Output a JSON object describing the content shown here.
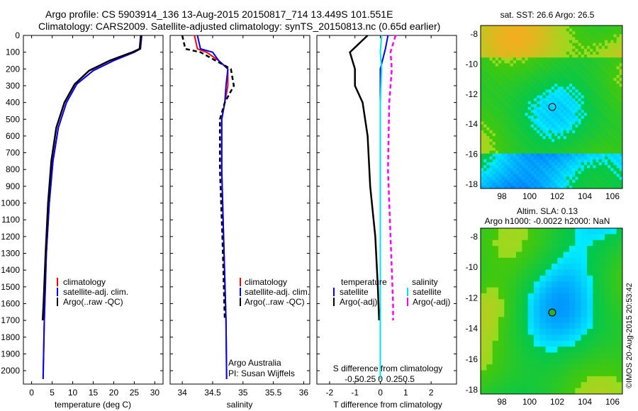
{
  "header": {
    "line1": "Argo profile: CS 5903914_136 13-Aug-2015 20150817_714 13.449S 101.551E",
    "line2": "Climatology: CARS2009. Satellite-adjusted climatology: synTS_20150813.nc (0.65d earlier)"
  },
  "colors": {
    "climatology": "#ff0000",
    "satellite": "#0000ff",
    "argo": "#000000",
    "sat_salinity": "#00e5ee",
    "argo_salinity": "#ff00ff"
  },
  "depth_ticks": [
    "0",
    "100",
    "200",
    "300",
    "400",
    "500",
    "600",
    "700",
    "800",
    "900",
    "1000",
    "1100",
    "1200",
    "1300",
    "1400",
    "1500",
    "1600",
    "1700",
    "1800",
    "1900",
    "2000"
  ],
  "panels": {
    "temperature": {
      "xlabel": "temperature (deg C)",
      "xticks": [
        "0",
        "5",
        "10",
        "15",
        "20",
        "25",
        "30"
      ],
      "legend": [
        "climatology",
        "satellite-adj. clim.",
        "Argo(..raw -QC)"
      ]
    },
    "salinity": {
      "xlabel": "salinity",
      "xticks": [
        "34",
        "34.5",
        "35",
        "35.5",
        "36"
      ],
      "legend": [
        "climatology",
        "satellite-adj. clim.",
        "Argo(..raw -QC)"
      ],
      "credit1": "Argo Australia",
      "credit2": "PI: Susan Wijffels"
    },
    "difference": {
      "xlabel": "T difference from climatology",
      "top_label": "S difference from climatology",
      "xticks": [
        "-2",
        "-1",
        "0",
        "1",
        "2"
      ],
      "sticks": [
        "-0.5",
        "-0.25",
        "0",
        "0.25",
        "0.5"
      ],
      "legend_t_title": "temperature",
      "legend_s_title": "salinity",
      "legend_t": [
        "satellite",
        "Argo(-adj)"
      ],
      "legend_s": [
        "satellite",
        "Argo(-adj)"
      ]
    },
    "sst_map": {
      "title": "sat. SST: 26.6 Argo: 26.5",
      "yticks": [
        "-8",
        "-10",
        "-12",
        "-14",
        "-16",
        "-18"
      ],
      "xticks": [
        "98",
        "100",
        "102",
        "104",
        "106"
      ]
    },
    "sla_map": {
      "title1": "Altim. SLA: 0.13",
      "title2": "Argo h1000: -0.0022 h2000: NaN",
      "yticks": [
        "-8",
        "-10",
        "-12",
        "-14",
        "-16",
        "-18"
      ],
      "xticks": [
        "98",
        "100",
        "102",
        "104",
        "106"
      ]
    }
  },
  "footer": {
    "credit": "©IMOS 20-Aug-2015 20:53:42"
  },
  "chart_data": [
    {
      "type": "line",
      "title": "",
      "xlabel": "temperature (deg C)",
      "ylabel": "",
      "xlim": [
        -2,
        32
      ],
      "ylim": [
        2080,
        0
      ],
      "series": [
        {
          "name": "climatology",
          "x": [
            26.8,
            26.5,
            25,
            20,
            15,
            11,
            8.5,
            6.5,
            5.2,
            4.3,
            3.6,
            3.1,
            2.8
          ],
          "y": [
            0,
            80,
            100,
            150,
            210,
            290,
            400,
            550,
            750,
            1000,
            1300,
            1700,
            2050
          ]
        },
        {
          "name": "satellite-adj. clim.",
          "x": [
            26.8,
            26.5,
            25,
            20,
            15,
            11,
            8.5,
            6.5,
            5.2,
            4.3,
            3.6,
            3.1,
            2.8
          ],
          "y": [
            0,
            80,
            100,
            150,
            210,
            290,
            400,
            550,
            750,
            1000,
            1300,
            1700,
            2050
          ]
        },
        {
          "name": "Argo(..raw -QC)",
          "x": [
            26.6,
            26.3,
            24.5,
            19,
            14,
            10.5,
            8,
            6,
            4.8,
            4,
            3.4,
            2.9,
            2.7
          ],
          "y": [
            0,
            80,
            100,
            150,
            210,
            290,
            400,
            550,
            750,
            1000,
            1300,
            1600,
            1700
          ]
        }
      ]
    },
    {
      "type": "line",
      "title": "",
      "xlabel": "salinity",
      "ylabel": "",
      "xlim": [
        33.8,
        36.1
      ],
      "ylim": [
        2080,
        0
      ],
      "series": [
        {
          "name": "climatology",
          "x": [
            34.2,
            34.25,
            34.4,
            34.6,
            34.75,
            34.75,
            34.7,
            34.65,
            34.65,
            34.68,
            34.72,
            34.73
          ],
          "y": [
            0,
            80,
            100,
            150,
            200,
            300,
            400,
            500,
            800,
            1200,
            1700,
            2050
          ]
        },
        {
          "name": "satellite-adj. clim.",
          "x": [
            34.25,
            34.3,
            34.5,
            34.6,
            34.75,
            34.72,
            34.7,
            34.65,
            34.65,
            34.68,
            34.72,
            34.73
          ],
          "y": [
            0,
            80,
            100,
            150,
            200,
            300,
            400,
            500,
            800,
            1200,
            1700,
            2050
          ]
        },
        {
          "name": "Argo(..raw -QC)",
          "x": [
            34.0,
            34.05,
            34.3,
            34.55,
            34.8,
            34.85,
            34.7,
            34.62,
            34.62,
            34.66,
            34.7
          ],
          "y": [
            0,
            80,
            100,
            150,
            200,
            300,
            400,
            500,
            800,
            1200,
            1700
          ]
        }
      ]
    },
    {
      "type": "line",
      "title": "",
      "xlabel": "T difference from climatology",
      "ylabel": "",
      "xlim": [
        -2.5,
        3
      ],
      "ylim": [
        2080,
        0
      ],
      "series": [
        {
          "name": "temperature satellite",
          "x": [
            0.3,
            0.2,
            0,
            0,
            0,
            0,
            0,
            0,
            0,
            0
          ],
          "y": [
            0,
            80,
            200,
            400,
            600,
            900,
            1200,
            1500,
            1800,
            2050
          ]
        },
        {
          "name": "temperature Argo(-adj)",
          "x": [
            -0.5,
            -1.2,
            -1,
            -1,
            -0.7,
            -0.5,
            -0.4,
            -0.2,
            -0.1,
            -0.05
          ],
          "y": [
            0,
            100,
            200,
            300,
            400,
            600,
            900,
            1200,
            1500,
            1700
          ]
        },
        {
          "name": "salinity satellite",
          "x": [
            0.05,
            0,
            0.05,
            0,
            0,
            0,
            0,
            0
          ],
          "y": [
            0,
            100,
            200,
            400,
            800,
            1200,
            1600,
            2050
          ]
        },
        {
          "name": "salinity Argo(-adj)",
          "x": [
            0.6,
            0.4,
            0.45,
            0.35,
            0.3,
            0.4,
            0.5,
            0.5
          ],
          "y": [
            0,
            100,
            200,
            400,
            800,
            1200,
            1600,
            1700
          ]
        }
      ]
    }
  ]
}
